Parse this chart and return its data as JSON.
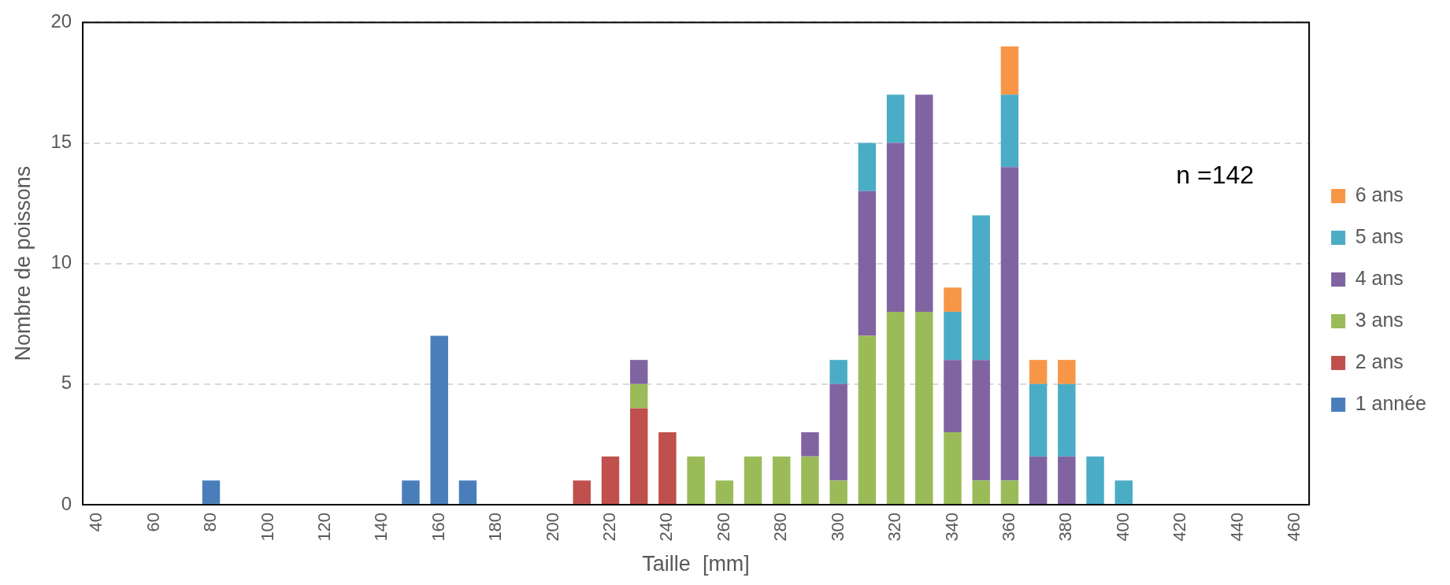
{
  "chart_data": {
    "type": "bar",
    "stacked": true,
    "xlabel": "Taille  [mm]",
    "ylabel": "Nombre de poissons",
    "categories": [
      "40",
      null,
      "60",
      null,
      "80",
      null,
      "100",
      null,
      "120",
      null,
      "140",
      null,
      "160",
      null,
      "180",
      null,
      "200",
      null,
      "220",
      null,
      "240",
      null,
      "260",
      null,
      "280",
      null,
      "300",
      null,
      "320",
      null,
      "340",
      null,
      "360",
      null,
      "380",
      null,
      "400",
      null,
      "420",
      null,
      "440",
      null,
      "460"
    ],
    "series": [
      {
        "name": "1 année",
        "color": "#4a7ebb",
        "values": [
          0,
          0,
          0,
          0,
          1,
          0,
          0,
          0,
          0,
          0,
          0,
          1,
          7,
          1,
          0,
          0,
          0,
          0,
          0,
          0,
          0,
          0,
          0,
          0,
          0,
          0,
          0,
          0,
          0,
          0,
          0,
          0,
          0,
          0,
          0,
          0,
          0,
          0,
          0,
          0,
          0,
          0,
          0
        ]
      },
      {
        "name": "2 ans",
        "color": "#c0504d",
        "values": [
          0,
          0,
          0,
          0,
          0,
          0,
          0,
          0,
          0,
          0,
          0,
          0,
          0,
          0,
          0,
          0,
          0,
          1,
          2,
          4,
          3,
          0,
          0,
          0,
          0,
          0,
          0,
          0,
          0,
          0,
          0,
          0,
          0,
          0,
          0,
          0,
          0,
          0,
          0,
          0,
          0,
          0,
          0
        ]
      },
      {
        "name": "3 ans",
        "color": "#9bbb59",
        "values": [
          0,
          0,
          0,
          0,
          0,
          0,
          0,
          0,
          0,
          0,
          0,
          0,
          0,
          0,
          0,
          0,
          0,
          0,
          0,
          1,
          0,
          2,
          1,
          2,
          2,
          2,
          1,
          7,
          8,
          8,
          3,
          1,
          1,
          0,
          0,
          0,
          0,
          0,
          0,
          0,
          0,
          0,
          0
        ]
      },
      {
        "name": "4 ans",
        "color": "#8064a2",
        "values": [
          0,
          0,
          0,
          0,
          0,
          0,
          0,
          0,
          0,
          0,
          0,
          0,
          0,
          0,
          0,
          0,
          0,
          0,
          0,
          1,
          0,
          0,
          0,
          0,
          0,
          1,
          4,
          6,
          7,
          9,
          3,
          5,
          13,
          2,
          2,
          0,
          0,
          0,
          0,
          0,
          0,
          0,
          0
        ]
      },
      {
        "name": "5 ans",
        "color": "#4bacc6",
        "values": [
          0,
          0,
          0,
          0,
          0,
          0,
          0,
          0,
          0,
          0,
          0,
          0,
          0,
          0,
          0,
          0,
          0,
          0,
          0,
          0,
          0,
          0,
          0,
          0,
          0,
          0,
          1,
          2,
          2,
          0,
          2,
          6,
          3,
          3,
          3,
          2,
          1,
          0,
          0,
          0,
          0,
          0,
          0
        ]
      },
      {
        "name": "6 ans",
        "color": "#f79646",
        "values": [
          0,
          0,
          0,
          0,
          0,
          0,
          0,
          0,
          0,
          0,
          0,
          0,
          0,
          0,
          0,
          0,
          0,
          0,
          0,
          0,
          0,
          0,
          0,
          0,
          0,
          0,
          0,
          0,
          0,
          0,
          1,
          0,
          2,
          1,
          1,
          0,
          0,
          0,
          0,
          0,
          0,
          0,
          0
        ]
      }
    ],
    "ylim": [
      0,
      20
    ],
    "yticks": [
      0,
      5,
      10,
      15,
      20
    ],
    "grid": "y",
    "legend": "right",
    "annotations": [
      "n =142"
    ]
  }
}
